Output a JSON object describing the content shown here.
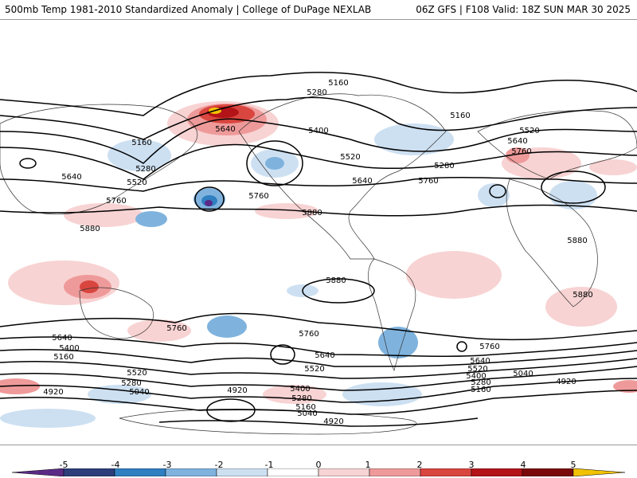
{
  "header": {
    "left": "500mb Temp 1981-2010 Standardized Anomaly | College of DuPage NEXLAB",
    "right": "06Z GFS | F108 Valid: 18Z SUN MAR 30 2025"
  },
  "map": {
    "contour_labels": [
      "5160",
      "5280",
      "5400",
      "5520",
      "5640",
      "5760",
      "5880",
      "5040",
      "4920"
    ],
    "labels": [
      {
        "text": "5160"
      },
      {
        "text": "5280"
      },
      {
        "text": "5400"
      },
      {
        "text": "5640"
      },
      {
        "text": "5160"
      },
      {
        "text": "5280"
      },
      {
        "text": "5520"
      },
      {
        "text": "5640"
      },
      {
        "text": "5520"
      },
      {
        "text": "5760"
      },
      {
        "text": "5640"
      },
      {
        "text": "5760"
      },
      {
        "text": "5880"
      },
      {
        "text": "5760"
      },
      {
        "text": "5160"
      },
      {
        "text": "5520"
      },
      {
        "text": "5640"
      },
      {
        "text": "5760"
      },
      {
        "text": "5280"
      },
      {
        "text": "5880"
      },
      {
        "text": "5880"
      },
      {
        "text": "5880"
      },
      {
        "text": "5880"
      },
      {
        "text": "5760"
      },
      {
        "text": "5640"
      },
      {
        "text": "5400"
      },
      {
        "text": "5160"
      },
      {
        "text": "5520"
      },
      {
        "text": "5280"
      },
      {
        "text": "5040"
      },
      {
        "text": "4920"
      },
      {
        "text": "5760"
      },
      {
        "text": "5640"
      },
      {
        "text": "5520"
      },
      {
        "text": "4920"
      },
      {
        "text": "5400"
      },
      {
        "text": "5280"
      },
      {
        "text": "5160"
      },
      {
        "text": "5040"
      },
      {
        "text": "4920"
      },
      {
        "text": "5760"
      },
      {
        "text": "5640"
      },
      {
        "text": "5520"
      },
      {
        "text": "5400"
      },
      {
        "text": "5280"
      },
      {
        "text": "5160"
      },
      {
        "text": "5040"
      },
      {
        "text": "4920"
      }
    ]
  },
  "colorbar": {
    "ticks": [
      "-5",
      "-4",
      "-3",
      "-2",
      "-1",
      "0",
      "1",
      "2",
      "3",
      "4",
      "5"
    ],
    "colors": [
      "#5b2a86",
      "#2c3e7a",
      "#2f7fc1",
      "#7fb3de",
      "#cde0f2",
      "#ffffff",
      "#f8d3d3",
      "#ef9a9a",
      "#d9463f",
      "#b41318",
      "#7a0a0a",
      "#f2c200"
    ]
  }
}
